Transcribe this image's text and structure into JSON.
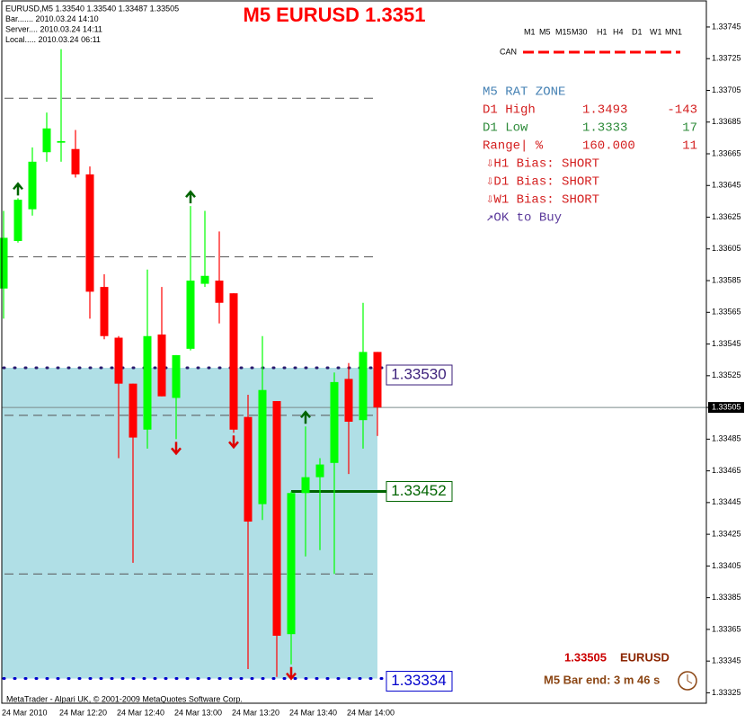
{
  "chart_data": {
    "type": "candlestick",
    "title": "M5 EURUSD 1.3351",
    "info_lines": [
      "EURUSD,M5  1.33540 1.33540 1.33487 1.33505",
      "Bar....... 2010.03.24 14:10",
      "Server.... 2010.03.24 14:11",
      "Local..... 2010.03.24 06:11"
    ],
    "timeframes": [
      "M1",
      "M5",
      "M15",
      "M30",
      "H1",
      "H4",
      "D1",
      "W1",
      "MN1"
    ],
    "can_label": "CAN",
    "categories": [
      "24 Mar 2010",
      null,
      null,
      null,
      "24 Mar 12:20",
      null,
      null,
      null,
      "24 Mar 12:40",
      null,
      null,
      null,
      "24 Mar 13:00",
      null,
      null,
      null,
      "24 Mar 13:20",
      null,
      null,
      null,
      "24 Mar 13:40",
      null,
      null,
      null,
      "24 Mar 14:00",
      null,
      null
    ],
    "open": [
      1.3358,
      1.3361,
      1.3363,
      1.33666,
      1.33672,
      1.33668,
      1.33652,
      1.33581,
      1.33549,
      1.3352,
      1.33491,
      1.33551,
      1.33511,
      1.33542,
      1.33583,
      1.33585,
      1.33577,
      1.33499,
      1.33444,
      1.33509,
      1.33362,
      1.33451,
      1.33461,
      1.3347,
      1.33523,
      1.33497,
      1.3354
    ],
    "high": [
      1.33629,
      1.33637,
      1.33669,
      1.33691,
      1.33731,
      1.3368,
      1.33657,
      1.33589,
      1.3355,
      1.3352,
      1.33592,
      1.33581,
      1.33538,
      1.33632,
      1.33629,
      1.33616,
      1.33577,
      1.33513,
      1.3355,
      1.33509,
      1.33452,
      1.33493,
      1.33473,
      1.33527,
      1.33533,
      1.33571,
      1.3354
    ],
    "low": [
      1.33561,
      1.33609,
      1.33626,
      1.3366,
      1.3366,
      1.3365,
      1.33561,
      1.33548,
      1.33473,
      1.33407,
      1.33479,
      1.33512,
      1.33485,
      1.33541,
      1.33581,
      1.33558,
      1.33489,
      1.3334,
      1.33434,
      1.33335,
      1.33343,
      1.33411,
      1.33415,
      1.334,
      1.33463,
      1.33479,
      1.33487
    ],
    "close": [
      1.33612,
      1.33636,
      1.3366,
      1.33681,
      1.33673,
      1.33652,
      1.33578,
      1.3355,
      1.3352,
      1.33486,
      1.3355,
      1.33512,
      1.33538,
      1.33585,
      1.33588,
      1.33571,
      1.33491,
      1.33433,
      1.33516,
      1.33361,
      1.33451,
      1.33461,
      1.33469,
      1.33521,
      1.33496,
      1.3354,
      1.33505
    ],
    "up_color": "#00ff00",
    "down_color": "#ff0000",
    "up_arrows": [
      1,
      13,
      21
    ],
    "down_arrows": [
      12,
      16,
      20
    ],
    "ylim": [
      1.33319,
      1.33762
    ],
    "yticks": [
      1.33745,
      1.33725,
      1.33705,
      1.33685,
      1.33665,
      1.33645,
      1.33625,
      1.33605,
      1.33585,
      1.33565,
      1.33545,
      1.33525,
      1.33505,
      1.33485,
      1.33465,
      1.33445,
      1.33425,
      1.33405,
      1.33385,
      1.33365,
      1.33345,
      1.33325
    ],
    "current_price": 1.33505,
    "grid_levels": [
      1.337,
      1.336,
      1.335,
      1.334
    ],
    "zone_top": {
      "value": 1.3353,
      "label": "1.33530"
    },
    "zone_bottom": 1.33334,
    "support": 1.33452,
    "panel": {
      "title": "M5 RAT ZONE",
      "rows": [
        [
          "D1 High",
          "1.3493",
          "-143"
        ],
        [
          "D1 Low",
          "1.3333",
          "17"
        ],
        [
          "Range| %",
          "160.000",
          "11"
        ]
      ],
      "bias": [
        "⇩H1 Bias: SHORT",
        "⇩D1 Bias: SHORT",
        "⇩W1 Bias: SHORT",
        "↗OK to Buy"
      ]
    },
    "footer_price": "1.33505",
    "footer_symbol": "EURUSD",
    "bar_end": "M5 Bar end: 3 m 46 s",
    "copyright": "MetaTrader - Alpari UK, © 2001-2009 MetaQuotes Software Corp."
  }
}
